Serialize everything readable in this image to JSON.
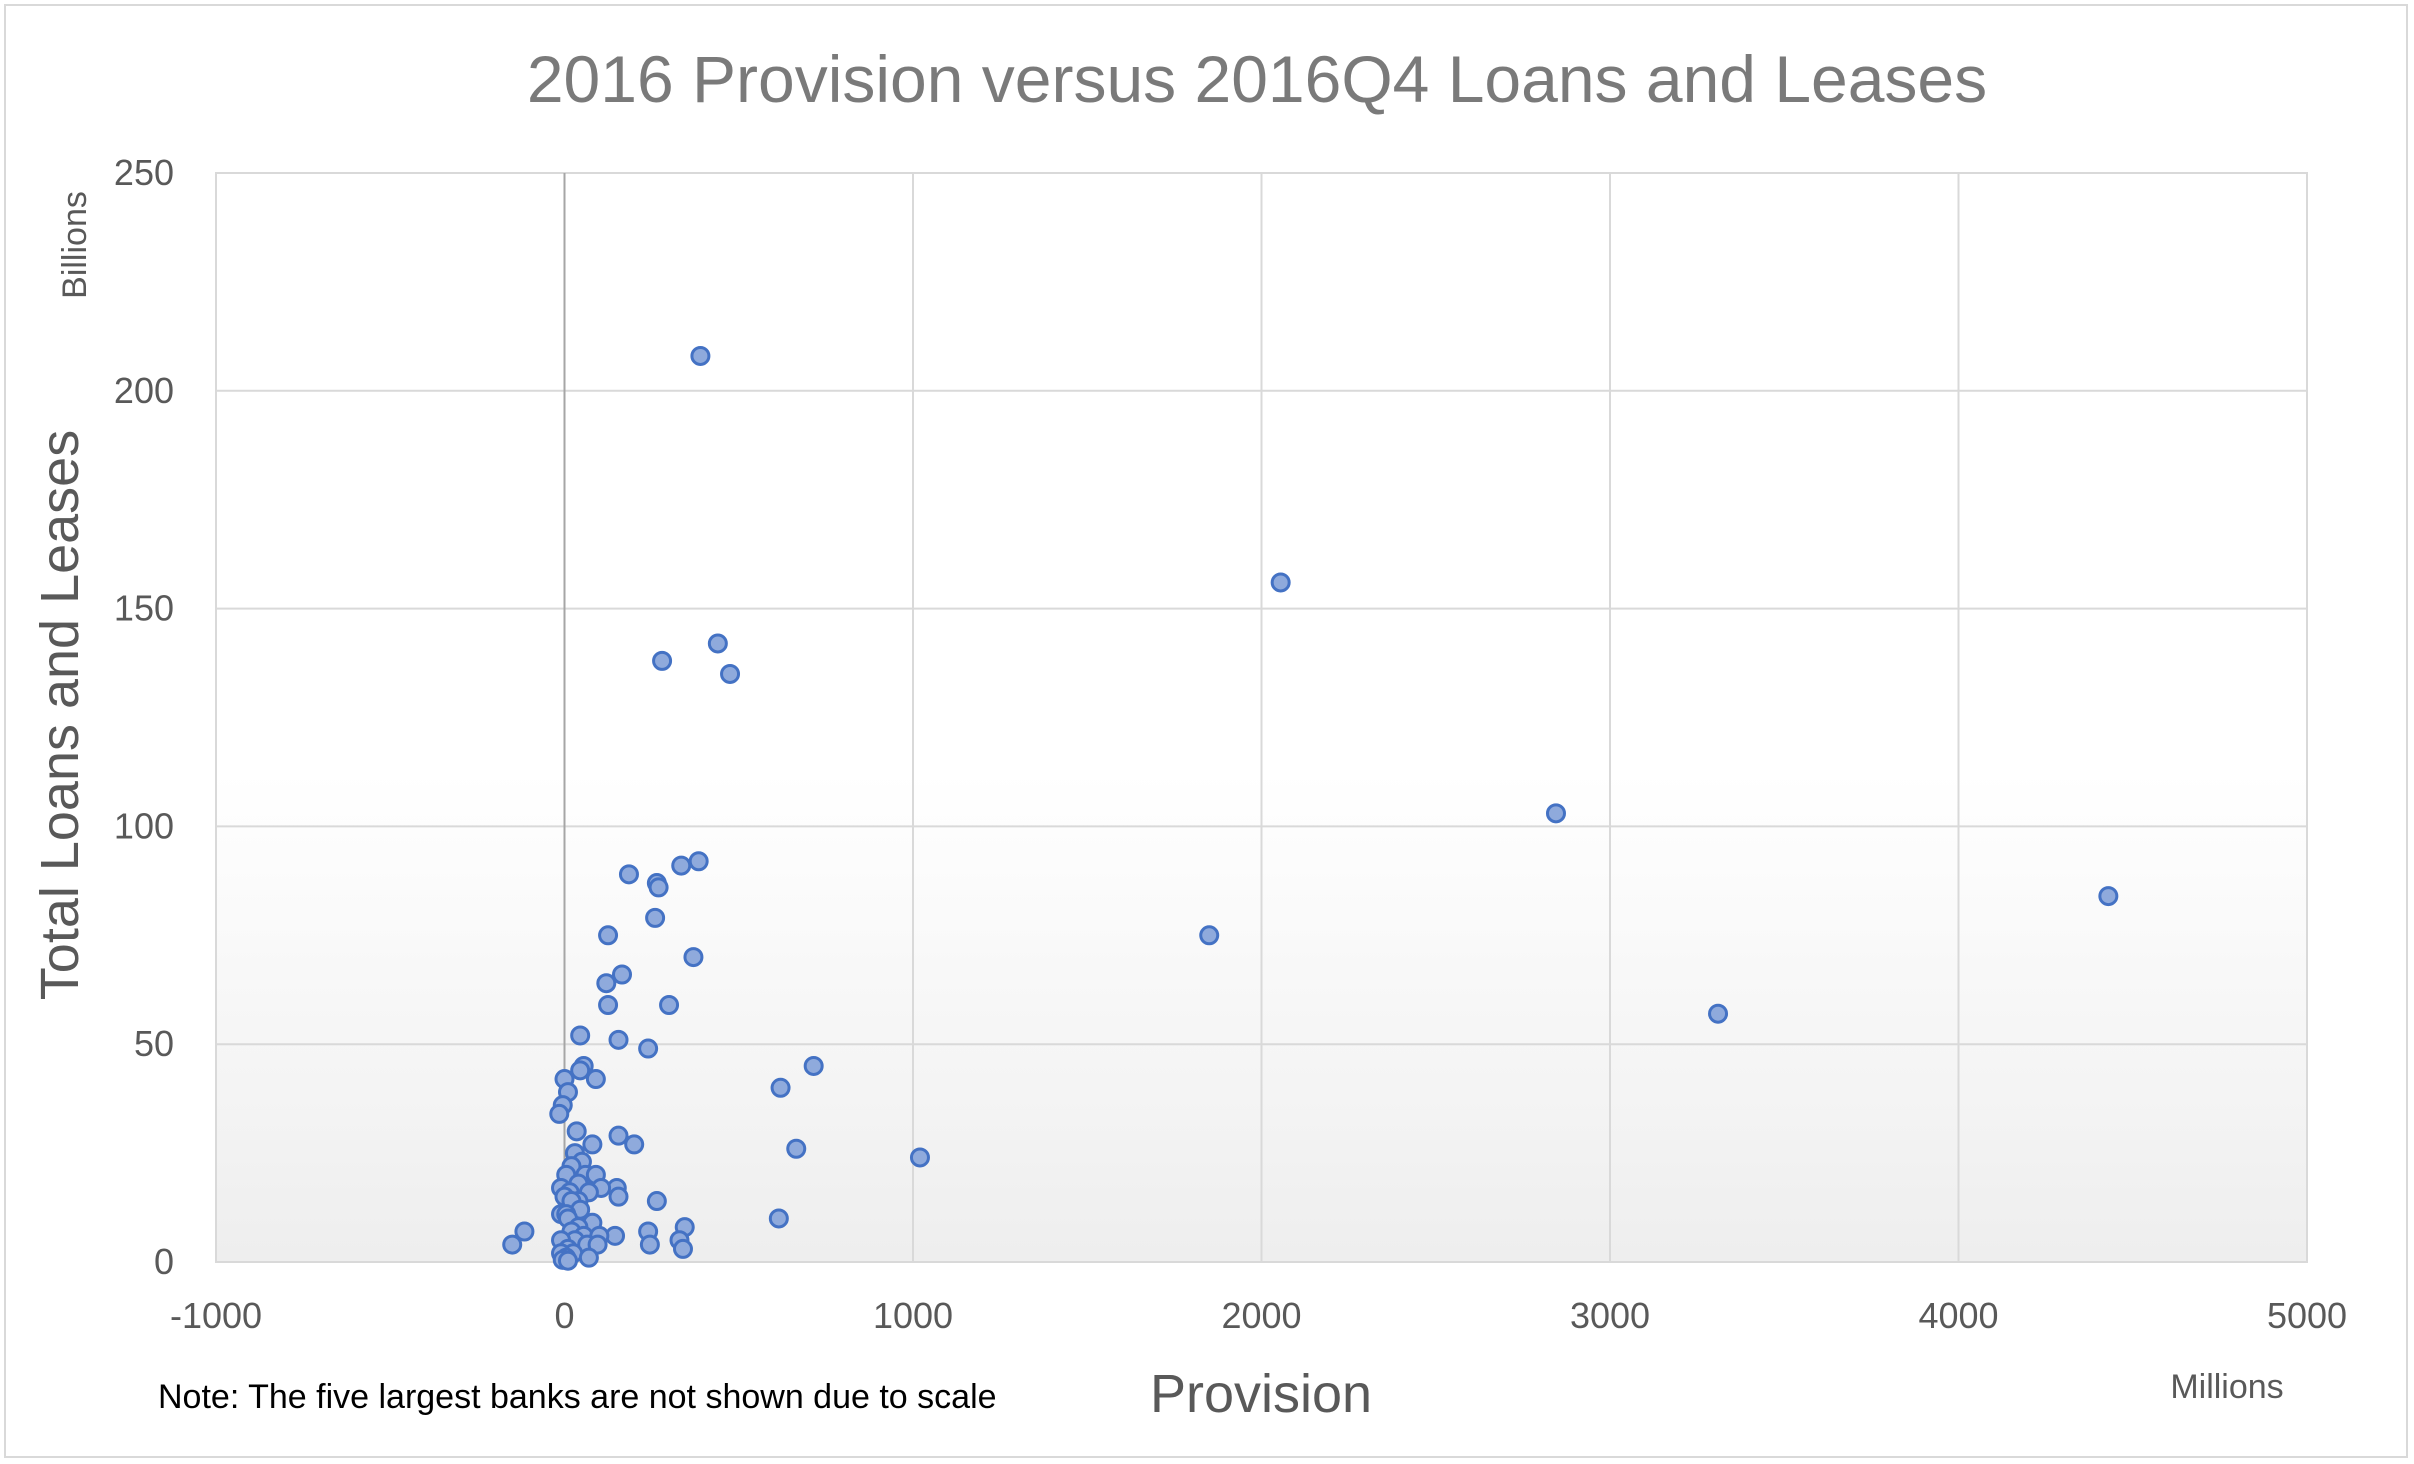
{
  "chart_data": {
    "type": "scatter",
    "title": "2016 Provision versus 2016Q4 Loans and Leases",
    "xlabel": "Provision",
    "ylabel": "Total Loans and Leases",
    "x_unit_label": "Millions",
    "y_unit_label": "Billions",
    "note": "Note: The five largest banks are not shown due to scale",
    "xlim": [
      -1000,
      5000
    ],
    "ylim": [
      0,
      250
    ],
    "x_ticks": [
      "-1000",
      "0",
      "1000",
      "2000",
      "3000",
      "4000",
      "5000"
    ],
    "y_ticks": [
      "0",
      "50",
      "100",
      "150",
      "200",
      "250"
    ],
    "grid": true,
    "legend": "none",
    "series": [
      {
        "points": [
          [
            390,
            208
          ],
          [
            2055,
            156
          ],
          [
            440,
            142
          ],
          [
            280,
            138
          ],
          [
            475,
            135
          ],
          [
            2845,
            103
          ],
          [
            4430,
            84
          ],
          [
            385,
            92
          ],
          [
            335,
            91
          ],
          [
            185,
            89
          ],
          [
            265,
            87
          ],
          [
            270,
            86
          ],
          [
            1850,
            75
          ],
          [
            260,
            79
          ],
          [
            125,
            75
          ],
          [
            370,
            70
          ],
          [
            165,
            66
          ],
          [
            120,
            64
          ],
          [
            300,
            59
          ],
          [
            3310,
            57
          ],
          [
            125,
            59
          ],
          [
            45,
            52
          ],
          [
            155,
            51
          ],
          [
            240,
            49
          ],
          [
            55,
            45
          ],
          [
            715,
            45
          ],
          [
            45,
            44
          ],
          [
            90,
            42
          ],
          [
            620,
            40
          ],
          [
            0,
            42
          ],
          [
            10,
            39
          ],
          [
            -5,
            36
          ],
          [
            -15,
            34
          ],
          [
            35,
            30
          ],
          [
            155,
            29
          ],
          [
            200,
            27
          ],
          [
            80,
            27
          ],
          [
            665,
            26
          ],
          [
            30,
            25
          ],
          [
            1020,
            24
          ],
          [
            50,
            23
          ],
          [
            20,
            22
          ],
          [
            60,
            20
          ],
          [
            5,
            20
          ],
          [
            90,
            20
          ],
          [
            40,
            18
          ],
          [
            150,
            17
          ],
          [
            105,
            17
          ],
          [
            -10,
            17
          ],
          [
            15,
            16
          ],
          [
            70,
            16
          ],
          [
            155,
            15
          ],
          [
            0,
            15
          ],
          [
            40,
            14
          ],
          [
            20,
            14
          ],
          [
            265,
            14
          ],
          [
            45,
            12
          ],
          [
            -10,
            11
          ],
          [
            5,
            11
          ],
          [
            10,
            10
          ],
          [
            615,
            10
          ],
          [
            80,
            9
          ],
          [
            345,
            8
          ],
          [
            40,
            8
          ],
          [
            20,
            7
          ],
          [
            -115,
            7
          ],
          [
            240,
            7
          ],
          [
            55,
            6
          ],
          [
            145,
            6
          ],
          [
            100,
            6
          ],
          [
            30,
            5
          ],
          [
            330,
            5
          ],
          [
            -10,
            5
          ],
          [
            65,
            4
          ],
          [
            -150,
            4
          ],
          [
            95,
            4
          ],
          [
            245,
            4
          ],
          [
            10,
            3
          ],
          [
            340,
            3
          ],
          [
            25,
            2
          ],
          [
            -10,
            2
          ],
          [
            70,
            1
          ],
          [
            5,
            1
          ],
          [
            -5,
            0.5
          ],
          [
            10,
            0.3
          ]
        ]
      }
    ]
  }
}
